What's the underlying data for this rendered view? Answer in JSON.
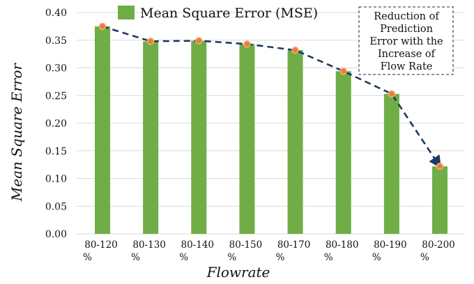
{
  "chart_data": {
    "type": "bar",
    "categories": [
      [
        "80-120",
        "%"
      ],
      [
        "80-130",
        "%"
      ],
      [
        "80-140",
        "%"
      ],
      [
        "80-150",
        "%"
      ],
      [
        "80-170",
        "%"
      ],
      [
        "80-180",
        "%"
      ],
      [
        "80-190",
        "%"
      ],
      [
        "80-200",
        "%"
      ]
    ],
    "series": [
      {
        "name": "Mean Square Error (MSE)",
        "values": [
          0.375,
          0.348,
          0.349,
          0.343,
          0.332,
          0.294,
          0.253,
          0.122
        ],
        "color": "#70ad47"
      }
    ],
    "trend": {
      "style": "dashed-arrow",
      "color": "#1f3864",
      "marker_color": "#ed7d31",
      "marker_outline": "#f4b183"
    },
    "yticks": [
      "0.00",
      "0.05",
      "0.10",
      "0.15",
      "0.20",
      "0.25",
      "0.30",
      "0.35",
      "0.40"
    ],
    "ylim": [
      0,
      0.4
    ],
    "xlabel": "Flowrate",
    "ylabel": "Mean Square Error",
    "grid": true,
    "legend_position": "top-center",
    "annotation": {
      "lines": [
        "Reduction of",
        "Prediction",
        "Error with the",
        "Increase of",
        "Flow Rate"
      ],
      "position": "top-right"
    }
  }
}
